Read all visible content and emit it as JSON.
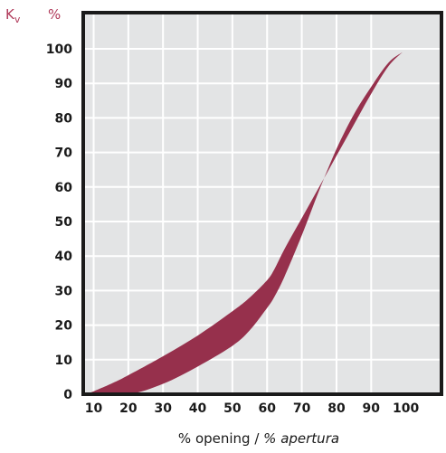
{
  "chart_data": {
    "type": "area",
    "title": "",
    "ylabel_symbol": "K",
    "ylabel_subscript": "v",
    "ylabel_unit": "%",
    "xlabel_main": "% opening / ",
    "xlabel_italic": "% apertura",
    "xlim": [
      0,
      100
    ],
    "ylim": [
      0,
      100
    ],
    "x_ticks": [
      10,
      20,
      30,
      40,
      50,
      60,
      70,
      80,
      90,
      100
    ],
    "y_ticks": [
      0,
      10,
      20,
      30,
      40,
      50,
      60,
      70,
      80,
      90,
      100
    ],
    "grid": true,
    "band_color": "#96304c",
    "series": [
      {
        "x": [
          8,
          15,
          20,
          30,
          40,
          50,
          55,
          60,
          62,
          65,
          70,
          75,
          80,
          85,
          90,
          95,
          99
        ],
        "values": [
          0,
          3,
          5.5,
          11,
          17,
          24,
          28,
          33,
          36,
          42,
          51,
          60,
          69,
          78,
          87,
          95,
          99
        ]
      },
      {
        "x": [
          8,
          20,
          30,
          40,
          50,
          55,
          60,
          62,
          65,
          70,
          75,
          80,
          85,
          90,
          95,
          99
        ],
        "values": [
          0,
          0,
          3,
          8,
          14,
          18.5,
          25,
          28,
          34,
          46,
          59,
          71,
          81,
          89,
          96,
          99
        ]
      }
    ]
  }
}
